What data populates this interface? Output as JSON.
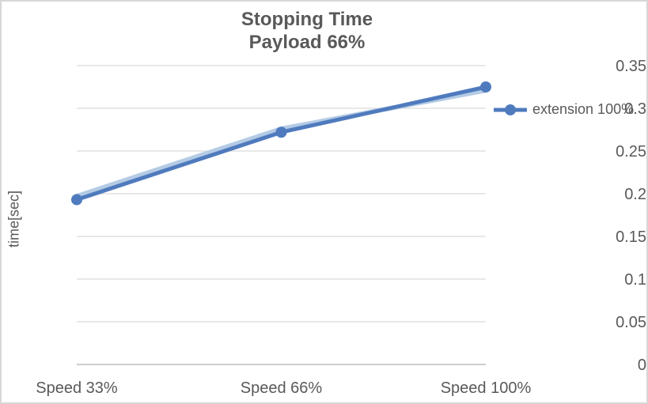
{
  "chart_data": {
    "type": "line",
    "title": "Stopping Time",
    "subtitle": "Payload 66%",
    "xlabel": "",
    "ylabel": "time[sec]",
    "categories": [
      "Speed 33%",
      "Speed 66%",
      "Speed 100%"
    ],
    "series": [
      {
        "name": "extension 100%",
        "values": [
          0.193,
          0.272,
          0.325
        ],
        "color": "#4F7BBE",
        "marker": "circle",
        "in_legend": true
      },
      {
        "name": "",
        "values": [
          0.197,
          0.276,
          0.321
        ],
        "color": "#B4CBE5",
        "marker": "none",
        "in_legend": false,
        "note": "faint lighter-blue line overlapping the main series"
      }
    ],
    "ylim": [
      0,
      0.35
    ],
    "ytick_step": 0.05,
    "ytick_labels": [
      "0",
      "0.05",
      "0.1",
      "0.15",
      "0.2",
      "0.25",
      "0.3",
      "0.35"
    ],
    "grid": true,
    "gridline_color": "#D9D9D9",
    "axis_line_color": "#C6C6C6",
    "text_color": "#595959",
    "legend": {
      "position": "right",
      "entries": [
        {
          "label": "extension 100%",
          "color": "#4F7BBE"
        }
      ]
    }
  }
}
